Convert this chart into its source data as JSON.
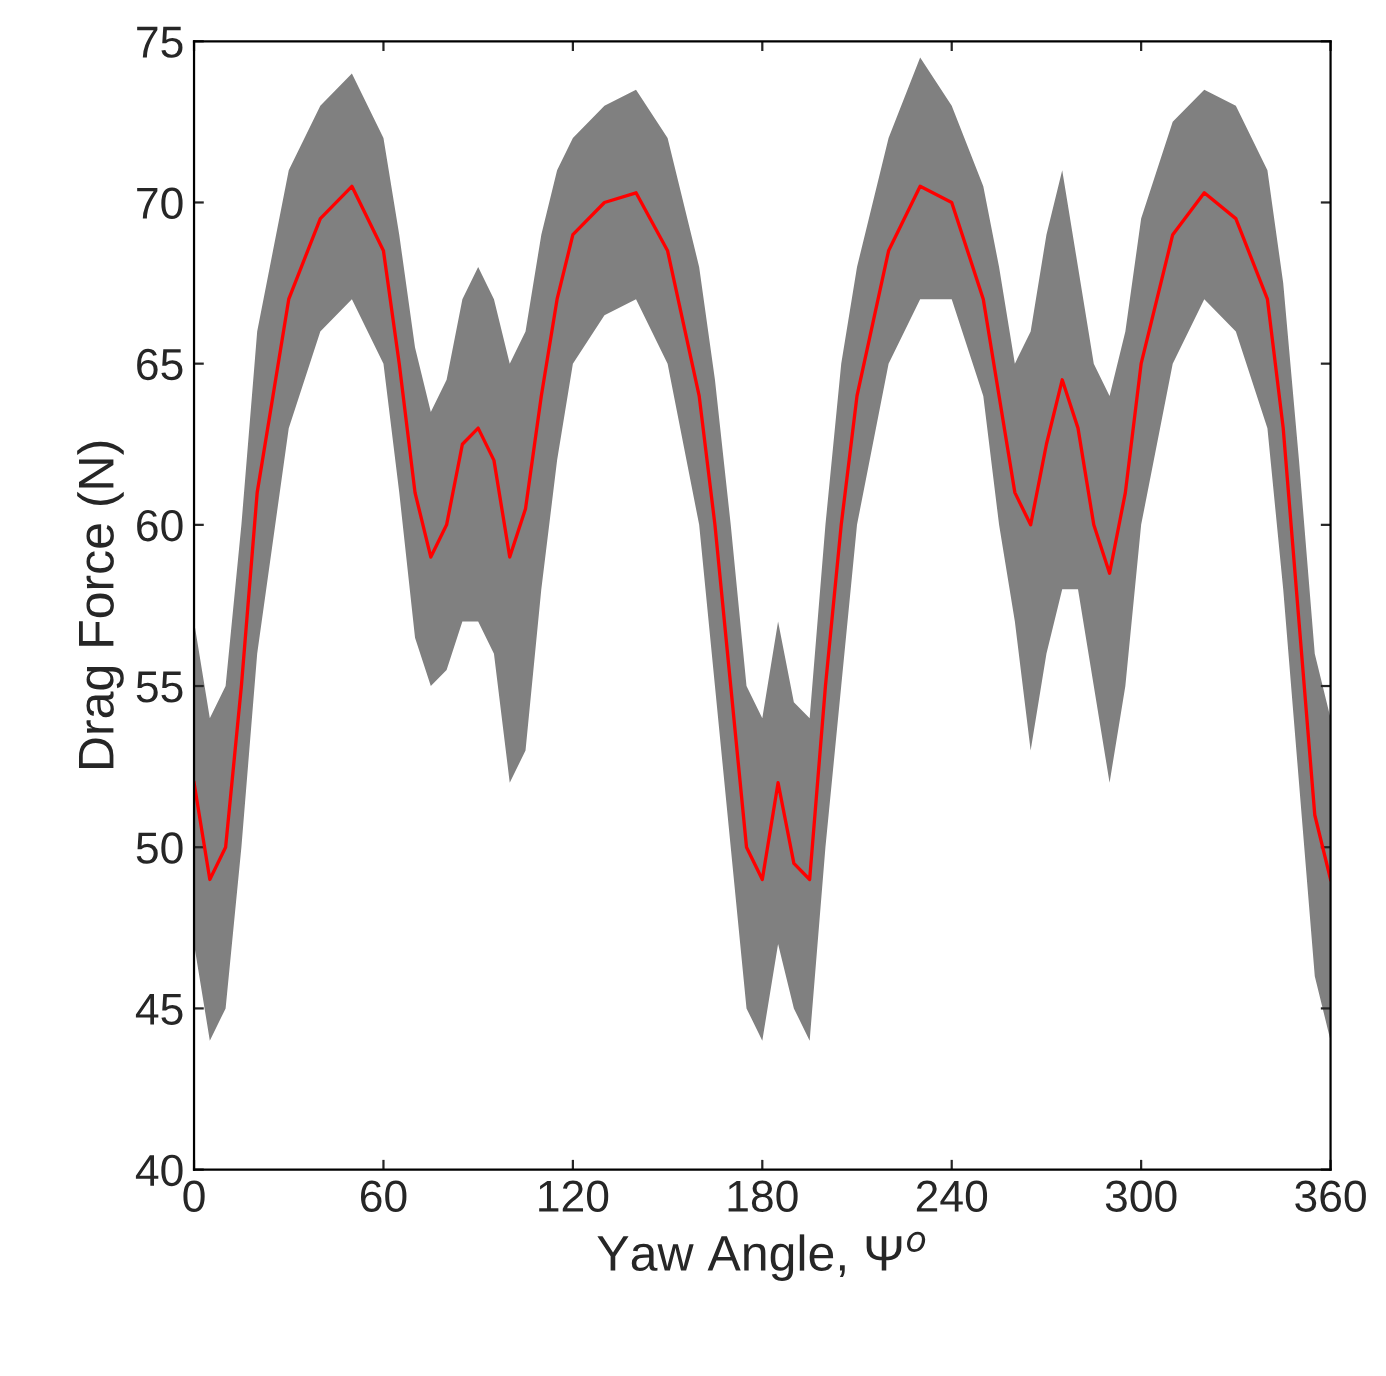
{
  "chart_data": {
    "type": "line",
    "xlabel": "Yaw Angle, Ψ$^{o}$",
    "ylabel": "Drag Force (N)",
    "x": [
      0,
      5,
      10,
      15,
      20,
      25,
      30,
      40,
      50,
      60,
      65,
      70,
      75,
      80,
      85,
      90,
      95,
      100,
      105,
      110,
      115,
      120,
      130,
      140,
      150,
      160,
      165,
      170,
      175,
      180,
      185,
      190,
      195,
      200,
      205,
      210,
      220,
      230,
      240,
      250,
      255,
      260,
      265,
      270,
      275,
      280,
      285,
      290,
      295,
      300,
      310,
      320,
      330,
      340,
      345,
      350,
      355,
      360
    ],
    "series": [
      {
        "color": "#ff0000",
        "values": [
          52,
          49,
          50,
          55,
          61,
          64,
          67,
          69.5,
          70.5,
          68.5,
          65,
          61,
          59,
          60,
          62.5,
          63,
          62,
          59,
          60.5,
          64,
          67,
          69,
          70,
          70.3,
          68.5,
          64,
          60,
          55,
          50,
          49,
          52,
          49.5,
          49,
          55,
          60,
          64,
          68.5,
          70.5,
          70,
          67,
          64,
          61,
          60,
          62.5,
          64.5,
          63,
          60,
          58.5,
          61,
          65,
          69,
          70.3,
          69.5,
          67,
          63,
          57,
          51,
          49
        ],
        "lower": [
          47,
          44,
          45,
          50,
          56,
          59.5,
          63,
          66,
          67,
          65,
          61,
          56.5,
          55,
          55.5,
          57,
          57,
          56,
          52,
          53,
          58,
          62,
          65,
          66.5,
          67,
          65,
          60,
          55,
          50,
          45,
          44,
          47,
          45,
          44,
          50,
          55,
          60,
          65,
          67,
          67,
          64,
          60,
          57,
          53,
          56,
          58,
          58,
          55,
          52,
          55,
          60,
          65,
          67,
          66,
          63,
          58,
          52,
          46,
          44
        ],
        "upper": [
          57,
          54,
          55,
          60,
          66,
          68.5,
          71,
          73,
          74,
          72,
          69,
          65.5,
          63.5,
          64.5,
          67,
          68,
          67,
          65,
          66,
          69,
          71,
          72,
          73,
          73.5,
          72,
          68,
          64.5,
          60,
          55,
          54,
          57,
          54.5,
          54,
          60,
          65,
          68,
          72,
          74.5,
          73,
          70.5,
          68,
          65,
          66,
          69,
          71,
          68,
          65,
          64,
          66,
          69.5,
          72.5,
          73.5,
          73,
          71,
          67.5,
          62,
          56,
          54
        ]
      }
    ],
    "xlim": [
      0,
      360
    ],
    "xticks": [
      0,
      60,
      120,
      180,
      240,
      300,
      360
    ],
    "ylim": [
      40,
      75
    ],
    "yticks": [
      40,
      45,
      50,
      55,
      60,
      65,
      70,
      75
    ],
    "grid": false,
    "legend": false,
    "line_style": "solid",
    "marker": "none"
  }
}
